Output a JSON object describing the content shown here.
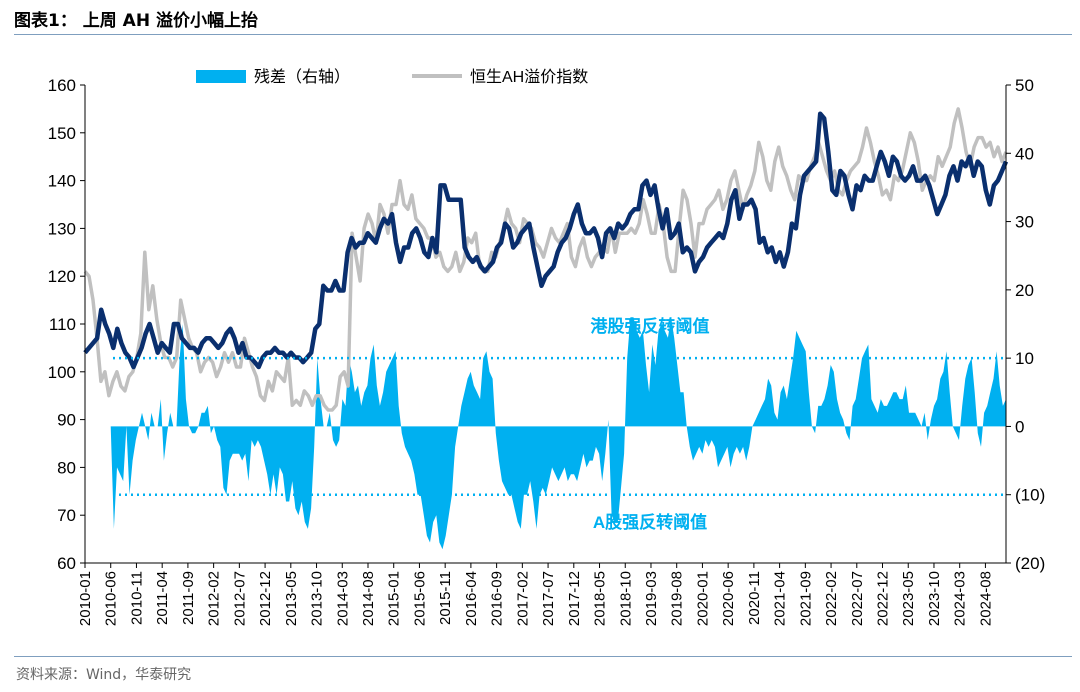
{
  "header": {
    "title": "图表1：  上周 AH 溢价小幅上抬"
  },
  "source": "资料来源：Wind，华泰研究",
  "colors": {
    "index_line": "#c0c0c0",
    "spread_fill": "#00b0f0",
    "spread_line": "#0a2f6e",
    "threshold": "#00b0f0"
  },
  "chart_data": {
    "type": "line",
    "legend": {
      "placement": "top-center",
      "items": [
        "残差（右轴）",
        "恒生AH溢价指数"
      ]
    },
    "left_axis": {
      "ticks": [
        60,
        70,
        80,
        90,
        100,
        110,
        120,
        130,
        140,
        150,
        160
      ],
      "ylim": [
        60,
        160
      ]
    },
    "right_axis": {
      "tick_labels": [
        "50",
        "40",
        "30",
        "20",
        "10",
        "0",
        "(10)",
        "(20)"
      ],
      "tick_values": [
        50,
        40,
        30,
        20,
        10,
        0,
        -10,
        -20
      ],
      "ylim": [
        -20,
        50
      ]
    },
    "x_tick_labels": [
      "2010-01",
      "2010-06",
      "2010-11",
      "2011-04",
      "2011-09",
      "2012-02",
      "2012-07",
      "2012-12",
      "2013-05",
      "2013-10",
      "2014-03",
      "2014-08",
      "2015-01",
      "2015-06",
      "2015-11",
      "2016-04",
      "2016-09",
      "2017-02",
      "2017-07",
      "2017-12",
      "2018-05",
      "2018-10",
      "2019-03",
      "2019-08",
      "2020-01",
      "2020-06",
      "2020-11",
      "2021-04",
      "2021-09",
      "2022-02",
      "2022-07",
      "2022-12",
      "2023-05",
      "2023-10",
      "2024-03",
      "2024-08"
    ],
    "x_range": [
      "2010-01",
      "2024-12"
    ],
    "thresholds": [
      {
        "label": "港股强反转阈值",
        "value": 10
      },
      {
        "label": "A股强反转阈值",
        "value": -10
      }
    ],
    "series": [
      {
        "name": "恒生AH溢价指数",
        "axis": "left",
        "values": [
          121,
          120,
          115,
          107,
          98,
          100,
          95,
          98,
          100,
          97,
          96,
          99,
          100,
          103,
          108,
          125,
          113,
          118,
          111,
          106,
          103,
          103,
          101,
          103,
          115,
          111,
          107,
          105,
          104,
          100,
          102,
          103,
          102,
          99,
          101,
          104,
          102,
          104,
          101,
          101,
          107,
          104,
          101,
          99,
          95,
          94,
          98,
          96,
          100,
          99,
          98,
          103,
          93,
          94,
          93,
          96,
          95,
          93,
          95,
          95,
          93,
          92,
          92,
          93,
          99,
          100,
          97,
          129,
          124,
          119,
          130,
          133,
          131,
          127,
          135,
          133,
          129,
          135,
          135,
          140,
          135,
          134,
          137,
          132,
          131,
          130,
          128,
          128,
          124,
          125,
          122,
          121,
          122,
          125,
          121,
          123,
          128,
          127,
          129,
          122,
          121,
          121,
          125,
          124,
          127,
          130,
          134,
          131,
          130,
          127,
          132,
          131,
          130,
          127,
          126,
          124,
          127,
          130,
          128,
          127,
          129,
          131,
          124,
          122,
          126,
          128,
          124,
          122,
          124,
          125,
          126,
          125,
          130,
          125,
          129,
          129,
          129,
          130,
          129,
          131,
          136,
          133,
          129,
          129,
          135,
          131,
          124,
          121,
          121,
          130,
          138,
          136,
          131,
          124,
          131,
          131,
          134,
          135,
          136,
          138,
          134,
          136,
          140,
          142,
          138,
          134,
          137,
          139,
          142,
          148,
          145,
          140,
          138,
          144,
          147,
          143,
          141,
          138,
          136,
          141,
          140,
          140,
          143,
          145,
          148,
          145,
          142,
          140,
          142,
          138,
          137,
          140,
          142,
          143,
          144,
          147,
          151,
          148,
          144,
          141,
          137,
          138,
          136,
          141,
          140,
          142,
          146,
          150,
          148,
          144,
          138,
          140,
          141,
          140,
          145,
          143,
          145,
          147,
          152,
          155,
          151,
          146,
          143,
          147,
          149,
          149,
          147,
          148,
          145,
          147,
          144,
          146
        ]
      },
      {
        "name": "残差（右轴）",
        "axis": "right",
        "values": [
          0,
          -15,
          -6,
          -7,
          -8,
          0,
          -10,
          -5,
          -2,
          0,
          2,
          0,
          -2,
          2,
          0,
          0,
          4,
          -5,
          -1,
          2,
          0,
          0,
          10,
          15,
          4,
          0,
          -1,
          -1,
          0,
          2,
          2,
          3,
          -1,
          0,
          -2,
          -3,
          -9,
          -10,
          -5,
          -4,
          -4,
          -4,
          -5,
          -4,
          -8,
          -2,
          -3,
          -2,
          -3,
          -5,
          -7,
          -10,
          -7,
          -10,
          -6,
          -7,
          -11,
          -11,
          -8,
          -12,
          -13,
          -11,
          -14,
          -15,
          -12,
          -3,
          10,
          4,
          0,
          0,
          2,
          -2,
          -3,
          -2,
          4,
          3,
          10,
          8,
          5,
          6,
          3,
          5,
          6,
          10,
          12,
          6,
          3,
          5,
          8,
          9,
          10,
          11,
          3,
          -1,
          -3,
          -4,
          -5,
          -7,
          -10,
          -10,
          -13,
          -16,
          -17,
          -14,
          -13,
          -17,
          -18,
          -16,
          -13,
          -10,
          -3,
          0,
          3,
          5,
          7,
          8,
          6,
          5,
          4,
          10,
          11,
          8,
          7,
          -1,
          -5,
          -8,
          -9,
          -10,
          -10,
          -12,
          -14,
          -15,
          -10,
          -10,
          -8,
          -11,
          -15,
          -10,
          -9,
          -10,
          -8,
          -6,
          -7,
          -8,
          -7,
          -6,
          -8,
          -7,
          -7,
          -8,
          -6,
          -4,
          -6,
          -5,
          -5,
          -3,
          -4,
          -8,
          -4,
          1,
          -13,
          -14,
          -14,
          -9,
          -4,
          10,
          16,
          16,
          14,
          13,
          14,
          9,
          5,
          12,
          9,
          14,
          15,
          14,
          13,
          16,
          13,
          9,
          5,
          5,
          0,
          -3,
          -5,
          -4,
          -3,
          -4,
          -2,
          -3,
          -2,
          -3,
          -6,
          -5,
          -4,
          -3,
          -6,
          -4,
          -3,
          -4,
          -3,
          -5,
          -3,
          0,
          1,
          2,
          3,
          4,
          7,
          6,
          2,
          1,
          5,
          6,
          4,
          7,
          10,
          14,
          13,
          12,
          11,
          5,
          0,
          -1,
          3,
          3,
          4,
          6,
          9,
          8,
          4,
          2,
          1,
          -1,
          -2,
          3,
          4,
          7,
          10,
          11,
          12,
          4,
          3,
          2,
          4,
          3,
          3,
          4,
          5,
          5,
          4,
          4,
          6,
          2,
          2,
          2,
          1,
          0,
          2,
          -2,
          1,
          3,
          4,
          7,
          8,
          11,
          5,
          0,
          -1,
          -2,
          3,
          7,
          9,
          10,
          5,
          -1,
          -3,
          2,
          3,
          5,
          7,
          11,
          6,
          3,
          4
        ]
      },
      {
        "name": "",
        "axis": "left",
        "values": [
          104,
          105,
          106,
          107,
          113,
          110,
          108,
          105,
          109,
          106,
          104,
          103,
          101,
          103,
          105,
          108,
          110,
          107,
          104,
          106,
          105,
          104,
          110,
          110,
          107,
          106,
          105,
          105,
          104,
          106,
          107,
          107,
          106,
          105,
          106,
          108,
          109,
          107,
          104,
          106,
          103,
          103,
          102,
          101,
          103,
          104,
          104,
          105,
          104,
          104,
          103,
          104,
          103,
          103,
          102,
          103,
          104,
          109,
          110,
          118,
          117,
          117,
          119,
          117,
          117,
          125,
          128,
          126,
          127,
          127,
          129,
          128,
          127,
          130,
          132,
          131,
          133,
          127,
          123,
          126,
          126,
          129,
          130,
          128,
          125,
          124,
          128,
          125,
          139,
          139,
          136,
          136,
          136,
          136,
          126,
          124,
          123,
          124,
          122,
          121,
          122,
          123,
          126,
          127,
          131,
          130,
          126,
          127,
          129,
          130,
          131,
          126,
          122,
          118,
          120,
          121,
          122,
          125,
          127,
          128,
          130,
          133,
          135,
          131,
          129,
          129,
          130,
          128,
          124,
          129,
          130,
          128,
          131,
          130,
          131,
          133,
          134,
          134,
          139,
          140,
          137,
          139,
          134,
          130,
          134,
          128,
          129,
          131,
          125,
          126,
          125,
          121,
          123,
          124,
          126,
          127,
          128,
          129,
          128,
          131,
          136,
          138,
          132,
          135,
          135,
          136,
          134,
          127,
          128,
          125,
          126,
          123,
          125,
          122,
          125,
          131,
          130,
          137,
          141,
          142,
          143,
          144,
          154,
          153,
          146,
          138,
          137,
          142,
          141,
          137,
          134,
          139,
          138,
          141,
          140,
          140,
          143,
          146,
          144,
          141,
          145,
          144,
          141,
          140,
          141,
          143,
          140,
          140,
          141,
          139,
          136,
          133,
          135,
          137,
          141,
          143,
          140,
          144,
          143,
          145,
          141,
          144,
          143,
          138,
          135,
          139,
          140,
          142,
          144
        ]
      }
    ]
  }
}
